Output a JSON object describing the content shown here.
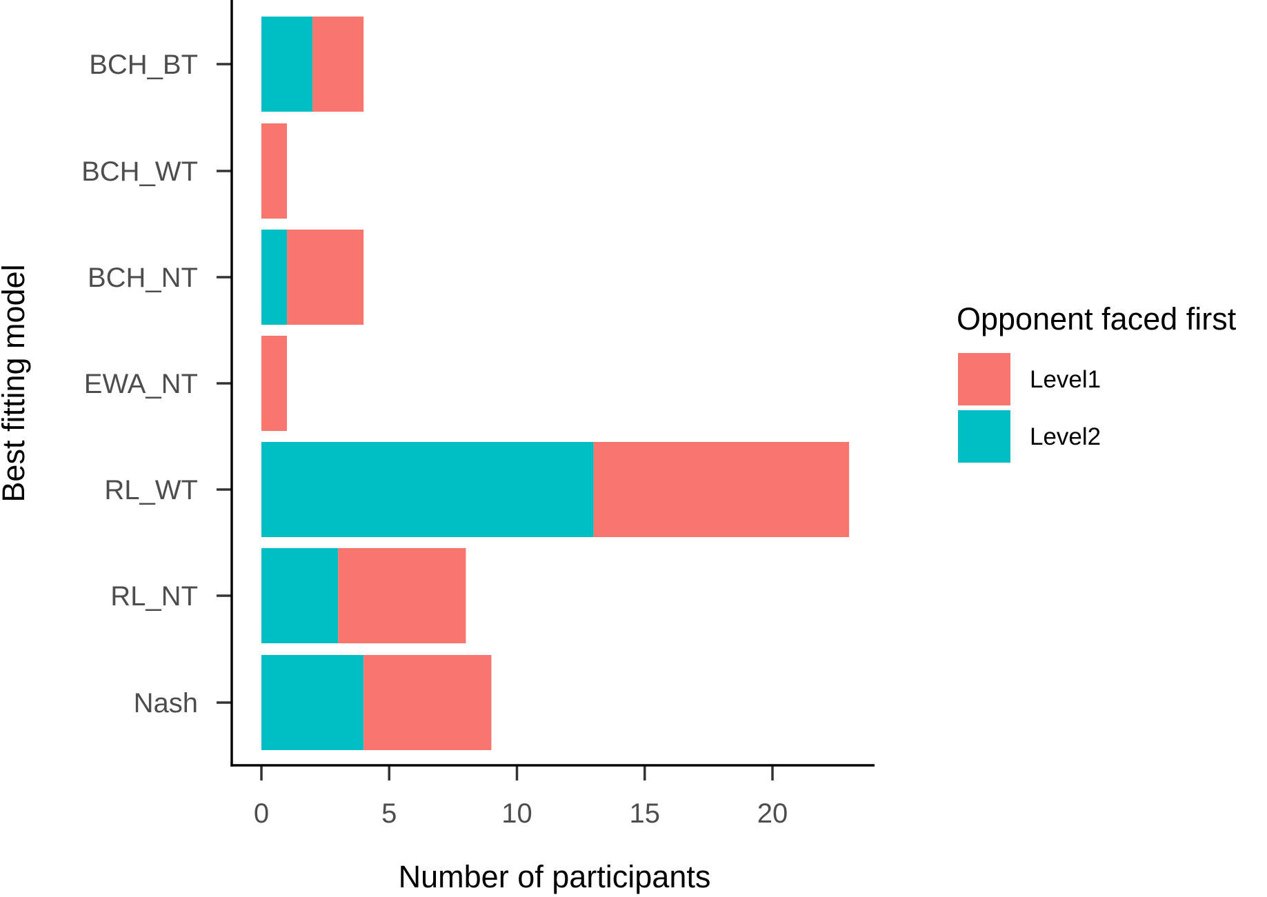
{
  "chart_data": {
    "type": "bar",
    "orientation": "horizontal",
    "stacked": true,
    "categories": [
      "BCH_BT",
      "BCH_WT",
      "BCH_NT",
      "EWA_NT",
      "RL_WT",
      "RL_NT",
      "Nash"
    ],
    "series": [
      {
        "name": "Level2",
        "color": "#00BFC4",
        "values": [
          2,
          0,
          1,
          0,
          13,
          3,
          4
        ]
      },
      {
        "name": "Level1",
        "color": "#F8766D",
        "values": [
          2,
          1,
          3,
          1,
          10,
          5,
          5
        ]
      }
    ],
    "xlabel": "Number of participants",
    "ylabel": "Best fitting model",
    "xlim": [
      0,
      24
    ],
    "xticks": [
      "0",
      "5",
      "10",
      "15",
      "20"
    ],
    "xtick_values": [
      0,
      5,
      10,
      15,
      20
    ],
    "grid": false,
    "legend": {
      "title": "Opponent faced first",
      "position": "right",
      "items": [
        {
          "label": "Level1",
          "color": "#F8766D"
        },
        {
          "label": "Level2",
          "color": "#00BFC4"
        }
      ]
    }
  }
}
